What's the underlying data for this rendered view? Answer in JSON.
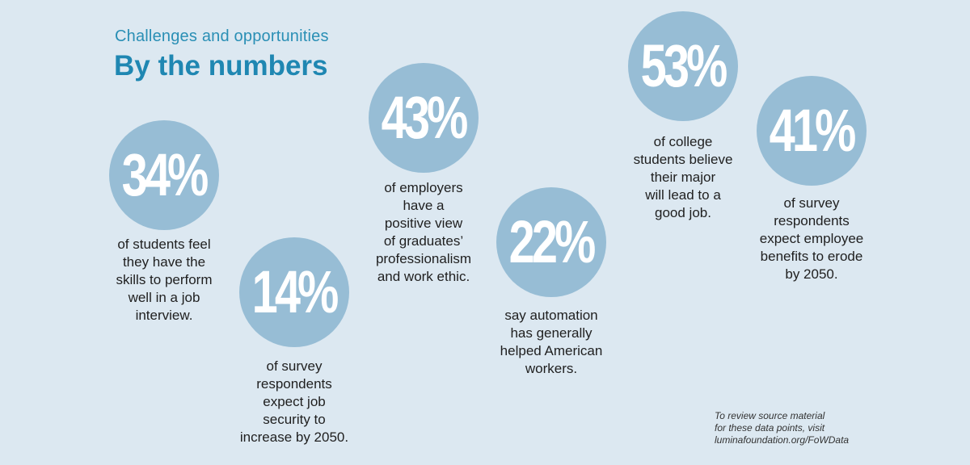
{
  "header": {
    "kicker": "Challenges and opportunities",
    "title": "By the numbers"
  },
  "stats": [
    {
      "value": "34%",
      "caption": "of students feel\nthey have the\nskills to perform\nwell in a job\ninterview."
    },
    {
      "value": "14%",
      "caption": "of survey\nrespondents\nexpect job\nsecurity to\nincrease by 2050."
    },
    {
      "value": "43%",
      "caption": "of employers\nhave a\npositive view\nof graduates’\nprofessionalism\nand work ethic."
    },
    {
      "value": "22%",
      "caption": "say automation\nhas generally\nhelped American\nworkers."
    },
    {
      "value": "53%",
      "caption": "of college\nstudents believe\ntheir major\nwill lead to a\ngood job."
    },
    {
      "value": "41%",
      "caption": "of survey\nrespondents\nexpect employee\nbenefits to erode\nby 2050."
    }
  ],
  "footer": {
    "source_note": "To review source material\nfor these data points, visit\nluminafoundation.org/FoWData"
  },
  "colors": {
    "background": "#dce8f1",
    "circle": "#97bdd5",
    "accent": "#1f87b2",
    "text": "#1f1f1f"
  }
}
